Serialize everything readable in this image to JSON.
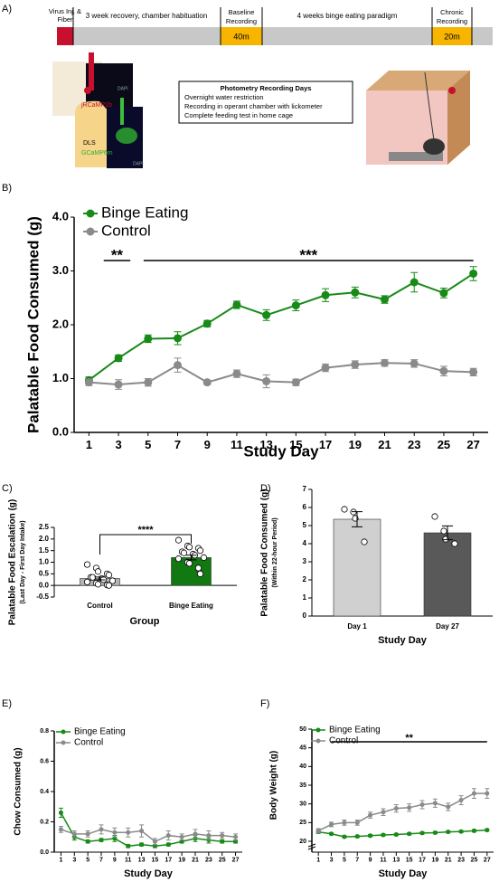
{
  "panel_a": {
    "label": "A)",
    "virus": [
      "Virus Inj. &",
      "Fiber"
    ],
    "recovery": "3 week recovery, chamber habituation",
    "baseline": [
      "Baseline",
      "Recording"
    ],
    "baseline_duration": "40m",
    "paradigm": "4 weeks binge eating paradigm",
    "chronic": [
      "Chronic",
      "Recording"
    ],
    "chronic_duration": "20m",
    "brain_labels": [
      "jRCaMP1b",
      "DAPI",
      "DLS",
      "GCaMP6m",
      "DAPI"
    ],
    "box": {
      "title": "Photometry Recording Days",
      "items": [
        "Overnight water restriction",
        "Recording in operant chamber with lickometer",
        "Complete feeding test in home cage"
      ]
    }
  },
  "chart_data": [
    {
      "type": "line",
      "panel_label": "B)",
      "ylabel": "Palatable Food Consumed (g)",
      "xlabel": "Study Day",
      "x": [
        1,
        3,
        5,
        7,
        9,
        11,
        13,
        15,
        17,
        19,
        21,
        23,
        25,
        27
      ],
      "xlim": [
        0,
        28
      ],
      "xticks": [
        1,
        3,
        5,
        7,
        9,
        11,
        13,
        15,
        17,
        19,
        21,
        23,
        25,
        27
      ],
      "ylim": [
        0,
        4
      ],
      "yticks": [
        {
          "value": 0,
          "label": "0.0"
        },
        {
          "value": 1,
          "label": "1.0"
        },
        {
          "value": 2,
          "label": "2.0"
        },
        {
          "value": 3,
          "label": "3.0"
        },
        {
          "value": 4,
          "label": "4.0"
        }
      ],
      "legend": "upper left",
      "series": [
        {
          "name": "Binge Eating",
          "color": "#178a17",
          "values": [
            0.97,
            1.38,
            1.74,
            1.75,
            2.02,
            2.37,
            2.18,
            2.36,
            2.55,
            2.6,
            2.47,
            2.79,
            2.59,
            2.95
          ],
          "errors": [
            0.06,
            0.06,
            0.07,
            0.12,
            0.06,
            0.07,
            0.1,
            0.1,
            0.12,
            0.1,
            0.07,
            0.18,
            0.09,
            0.13
          ]
        },
        {
          "name": "Control",
          "color": "#8a8a8a",
          "values": [
            0.93,
            0.89,
            0.93,
            1.25,
            0.93,
            1.09,
            0.95,
            0.93,
            1.2,
            1.26,
            1.29,
            1.28,
            1.14,
            1.12
          ],
          "errors": [
            0.06,
            0.09,
            0.07,
            0.13,
            0.04,
            0.07,
            0.12,
            0.06,
            0.07,
            0.07,
            0.06,
            0.07,
            0.09,
            0.07
          ]
        }
      ],
      "annotations": [
        {
          "label": "**",
          "x": [
            2,
            3.8
          ]
        },
        {
          "label": "***",
          "x": [
            4.7,
            27
          ]
        }
      ]
    },
    {
      "type": "bar",
      "panel_label": "C)",
      "ylabel": "Palatable Food Escalation (g)",
      "ylabel_sub": "(Last Day - First Day Intake)",
      "xlabel": "Group",
      "categories": [
        "Control",
        "Binge Eating"
      ],
      "values": [
        0.3,
        1.2
      ],
      "errors": [
        0.06,
        0.1
      ],
      "colors": [
        "#b5b5b5",
        "#127812"
      ],
      "points": [
        [
          0.9,
          0.75,
          0.6,
          0.5,
          0.45,
          0.35,
          0.35,
          0.3,
          0.25,
          0.2,
          0.15,
          0.1,
          0.05,
          0.02,
          0.0
        ],
        [
          1.95,
          1.7,
          1.65,
          1.6,
          1.5,
          1.45,
          1.4,
          1.35,
          1.3,
          1.2,
          1.15,
          1.0,
          0.95,
          0.75,
          0.5
        ]
      ],
      "ylim": [
        -0.5,
        2.5
      ],
      "yticks": [
        -0.5,
        {
          "value": 0,
          "label": "0.0"
        },
        0.5,
        {
          "value": 1,
          "label": "1.0"
        },
        1.5,
        {
          "value": 2,
          "label": "2.0"
        },
        2.5
      ],
      "significance": "****"
    },
    {
      "type": "bar",
      "panel_label": "D)",
      "ylabel": "Palatable Food Consumed (g)",
      "ylabel_sub": "(Within 22-hour Period)",
      "xlabel": "Study Day",
      "categories": [
        "Day 1",
        "Day 27"
      ],
      "values": [
        5.35,
        4.6
      ],
      "errors": [
        0.42,
        0.38
      ],
      "colors": [
        "#d0d0d0",
        "#595959"
      ],
      "points": [
        [
          5.9,
          5.75,
          5.4,
          4.1
        ],
        [
          5.5,
          4.7,
          4.25,
          4.0
        ]
      ],
      "ylim": [
        0,
        7
      ],
      "yticks": [
        0,
        1,
        2,
        3,
        4,
        5,
        6,
        7
      ]
    },
    {
      "type": "line",
      "panel_label": "E)",
      "ylabel": "Chow Consumed (g)",
      "xlabel": "Study Day",
      "x": [
        1,
        3,
        5,
        7,
        9,
        11,
        13,
        15,
        17,
        19,
        21,
        23,
        25,
        27
      ],
      "xlim": [
        0,
        28
      ],
      "xticks": [
        1,
        3,
        5,
        7,
        9,
        11,
        13,
        15,
        17,
        19,
        21,
        23,
        25,
        27
      ],
      "ylim": [
        0,
        0.8
      ],
      "yticks": [
        {
          "value": 0,
          "label": "0.0"
        },
        0.2,
        0.4,
        0.6,
        0.8
      ],
      "legend": "upper left",
      "series": [
        {
          "name": "Binge Eating",
          "color": "#178a17",
          "values": [
            0.26,
            0.1,
            0.07,
            0.08,
            0.09,
            0.04,
            0.05,
            0.04,
            0.05,
            0.07,
            0.09,
            0.08,
            0.07,
            0.07
          ],
          "errors": [
            0.03,
            0.02,
            0.01,
            0.01,
            0.02,
            0.01,
            0.01,
            0.01,
            0.01,
            0.01,
            0.02,
            0.02,
            0.01,
            0.01
          ]
        },
        {
          "name": "Control",
          "color": "#8a8a8a",
          "values": [
            0.15,
            0.12,
            0.12,
            0.15,
            0.13,
            0.13,
            0.14,
            0.07,
            0.11,
            0.1,
            0.12,
            0.11,
            0.11,
            0.1
          ],
          "errors": [
            0.02,
            0.02,
            0.02,
            0.03,
            0.03,
            0.03,
            0.04,
            0.02,
            0.03,
            0.02,
            0.03,
            0.03,
            0.02,
            0.02
          ]
        }
      ]
    },
    {
      "type": "line",
      "panel_label": "F)",
      "ylabel": "Body Weight (g)",
      "xlabel": "Study Day",
      "x": [
        1,
        3,
        5,
        7,
        9,
        11,
        13,
        15,
        17,
        19,
        21,
        23,
        25,
        27
      ],
      "xlim": [
        0,
        28
      ],
      "xticks": [
        1,
        3,
        5,
        7,
        9,
        11,
        13,
        15,
        17,
        19,
        21,
        23,
        25,
        27
      ],
      "ylim": [
        20,
        50
      ],
      "yticks": [
        20,
        25,
        30,
        35,
        40,
        45,
        50
      ],
      "legend": "upper left",
      "series": [
        {
          "name": "Binge Eating",
          "color": "#178a17",
          "values": [
            22.5,
            22,
            21.2,
            21.3,
            21.5,
            21.7,
            21.8,
            22,
            22.2,
            22.3,
            22.5,
            22.6,
            22.8,
            23
          ],
          "errors": [
            0.4,
            0.3,
            0.3,
            0.3,
            0.3,
            0.3,
            0.3,
            0.3,
            0.3,
            0.3,
            0.3,
            0.3,
            0.3,
            0.3
          ]
        },
        {
          "name": "Control",
          "color": "#8a8a8a",
          "values": [
            22.8,
            24.5,
            25,
            25,
            27,
            27.8,
            28.8,
            29,
            29.8,
            30.2,
            29.2,
            31,
            32.8,
            32.8
          ],
          "errors": [
            0.6,
            0.6,
            0.7,
            0.7,
            0.8,
            0.9,
            1,
            1,
            1.1,
            1.1,
            1,
            1.2,
            1.3,
            1.3
          ]
        }
      ],
      "annotations": [
        {
          "label": "**",
          "x": [
            3,
            27
          ]
        }
      ]
    }
  ]
}
